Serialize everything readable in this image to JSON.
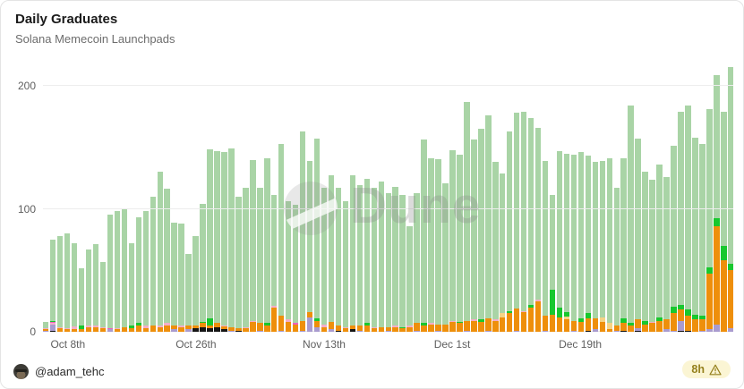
{
  "header": {
    "title": "Daily Graduates",
    "subtitle": "Solana Memecoin Launchpads"
  },
  "watermark": {
    "text": "Dune"
  },
  "footer": {
    "author": "@adam_tehc",
    "badge": {
      "label": "8h",
      "icon": "warning-triangle-icon"
    }
  },
  "chart_data": {
    "type": "bar",
    "stacked": true,
    "title": "Daily Graduates",
    "xlabel": "",
    "ylabel": "",
    "ylim": [
      0,
      215
    ],
    "grid": true,
    "legend": "none",
    "yticks": [
      0,
      100,
      200
    ],
    "xticks": [
      {
        "index": 3,
        "label": "Oct 8th"
      },
      {
        "index": 21,
        "label": "Oct 26th"
      },
      {
        "index": 39,
        "label": "Nov 13th"
      },
      {
        "index": 57,
        "label": "Dec 1st"
      },
      {
        "index": 75,
        "label": "Dec 19th"
      }
    ],
    "colors": {
      "bk": "#151515",
      "pu": "#a99bcf",
      "or": "#ee8f0b",
      "cr": "#f5d385",
      "pk": "#f3aec8",
      "mg": "#ee5fbe",
      "gr": "#18c82e",
      "lg": "#a9d4a6"
    },
    "stack_order": [
      "bk",
      "pu",
      "or",
      "cr",
      "pk",
      "mg",
      "gr",
      "lg"
    ],
    "series_names": {
      "bk": "black",
      "pu": "purple",
      "or": "orange",
      "cr": "cream",
      "pk": "pink",
      "mg": "magenta",
      "gr": "bright-green",
      "lg": "light-green"
    },
    "note": "lg (light-green) segment = total minus sum of listed segments",
    "bars": [
      [
        "Oct 5",
        8,
        {
          "pu": 1,
          "or": 1,
          "pk": 1
        }
      ],
      [
        "Oct 6",
        75,
        {
          "bk": 1,
          "pu": 5,
          "pk": 1,
          "mg": 1,
          "gr": 1
        }
      ],
      [
        "Oct 7",
        78,
        {
          "or": 3,
          "pk": 1
        }
      ],
      [
        "Oct 8",
        80,
        {
          "or": 2,
          "pk": 1
        }
      ],
      [
        "Oct 9",
        72,
        {
          "or": 2,
          "pk": 2
        }
      ],
      [
        "Oct 10",
        52,
        {
          "or": 2,
          "gr": 3
        }
      ],
      [
        "Oct 11",
        67,
        {
          "or": 4,
          "pk": 1
        }
      ],
      [
        "Oct 12",
        71,
        {
          "or": 4,
          "pk": 1
        }
      ],
      [
        "Oct 13",
        57,
        {
          "or": 3,
          "pk": 1
        }
      ],
      [
        "Oct 14",
        95,
        {
          "pu": 2,
          "mg": 1
        }
      ],
      [
        "Oct 15",
        98,
        {
          "or": 2,
          "pk": 1
        }
      ],
      [
        "Oct 16",
        100,
        {
          "or": 4
        }
      ],
      [
        "Oct 17",
        72,
        {
          "or": 3,
          "gr": 2
        }
      ],
      [
        "Oct 18",
        93,
        {
          "or": 5,
          "gr": 2
        }
      ],
      [
        "Oct 19",
        98,
        {
          "or": 3,
          "pk": 2
        }
      ],
      [
        "Oct 20",
        110,
        {
          "or": 5
        }
      ],
      [
        "Oct 21",
        130,
        {
          "or": 4,
          "pk": 1
        }
      ],
      [
        "Oct 22",
        116,
        {
          "or": 5,
          "pk": 2
        }
      ],
      [
        "Oct 23",
        89,
        {
          "pu": 2,
          "or": 3
        }
      ],
      [
        "Oct 24",
        88,
        {
          "or": 4,
          "pk": 1
        }
      ],
      [
        "Oct 25",
        63,
        {
          "or": 3,
          "pu": 2
        }
      ],
      [
        "Oct 26",
        78,
        {
          "bk": 3,
          "or": 2
        }
      ],
      [
        "Oct 27",
        104,
        {
          "bk": 4,
          "or": 3,
          "gr": 1
        }
      ],
      [
        "Oct 28",
        148,
        {
          "bk": 3,
          "or": 2,
          "gr": 6
        }
      ],
      [
        "Oct 29",
        147,
        {
          "bk": 4,
          "or": 3
        }
      ],
      [
        "Oct 30",
        146,
        {
          "bk": 2,
          "or": 2,
          "pk": 1
        }
      ],
      [
        "Oct 31",
        149,
        {
          "pu": 1,
          "or": 3
        }
      ],
      [
        "Nov 1",
        110,
        {
          "bk": 1,
          "or": 2
        }
      ],
      [
        "Nov 2",
        117,
        {
          "or": 3,
          "pk": 1
        }
      ],
      [
        "Nov 3",
        140,
        {
          "or": 8,
          "pk": 1
        }
      ],
      [
        "Nov 4",
        117,
        {
          "pu": 1,
          "or": 6
        }
      ],
      [
        "Nov 5",
        141,
        {
          "or": 5,
          "gr": 2
        }
      ],
      [
        "Nov 6",
        111,
        {
          "or": 20,
          "pk": 1
        }
      ],
      [
        "Nov 7",
        153,
        {
          "pu": 1,
          "or": 12
        }
      ],
      [
        "Nov 8",
        106,
        {
          "or": 8,
          "pk": 2
        }
      ],
      [
        "Nov 9",
        103,
        {
          "or": 6,
          "mg": 1
        }
      ],
      [
        "Nov 10",
        163,
        {
          "pu": 1,
          "or": 8
        }
      ],
      [
        "Nov 11",
        139,
        {
          "pu": 12,
          "or": 4
        }
      ],
      [
        "Nov 12",
        157,
        {
          "pu": 4,
          "or": 5,
          "gr": 2
        }
      ],
      [
        "Nov 13",
        117,
        {
          "or": 4,
          "pk": 2
        }
      ],
      [
        "Nov 14",
        127,
        {
          "pu": 2,
          "or": 6
        }
      ],
      [
        "Nov 15",
        117,
        {
          "bk": 1,
          "or": 4
        }
      ],
      [
        "Nov 16",
        106,
        {
          "or": 3,
          "pk": 1
        }
      ],
      [
        "Nov 17",
        127,
        {
          "bk": 2,
          "or": 3
        }
      ],
      [
        "Nov 18",
        119,
        {
          "pu": 1,
          "or": 4
        }
      ],
      [
        "Nov 19",
        124,
        {
          "or": 5,
          "gr": 2
        }
      ],
      [
        "Nov 20",
        117,
        {
          "or": 3,
          "pk": 1
        }
      ],
      [
        "Nov 21",
        122,
        {
          "or": 4
        }
      ],
      [
        "Nov 22",
        113,
        {
          "pu": 1,
          "or": 3
        }
      ],
      [
        "Nov 23",
        118,
        {
          "or": 4,
          "pk": 1
        }
      ],
      [
        "Nov 24",
        111,
        {
          "or": 3,
          "gr": 1
        }
      ],
      [
        "Nov 25",
        86,
        {
          "or": 4,
          "pk": 1
        }
      ],
      [
        "Nov 26",
        113,
        {
          "pu": 1,
          "or": 6
        }
      ],
      [
        "Nov 27",
        156,
        {
          "or": 5,
          "gr": 2
        }
      ],
      [
        "Nov 28",
        141,
        {
          "or": 6,
          "pk": 1
        }
      ],
      [
        "Nov 29",
        140,
        {
          "pu": 1,
          "or": 5
        }
      ],
      [
        "Nov 30",
        121,
        {
          "or": 6
        }
      ],
      [
        "Dec 1",
        148,
        {
          "or": 8,
          "pk": 1
        }
      ],
      [
        "Dec 2",
        144,
        {
          "or": 7,
          "gr": 1
        }
      ],
      [
        "Dec 3",
        187,
        {
          "pu": 1,
          "or": 8
        }
      ],
      [
        "Dec 4",
        156,
        {
          "or": 9,
          "pk": 1
        }
      ],
      [
        "Dec 5",
        165,
        {
          "or": 8,
          "gr": 2
        }
      ],
      [
        "Dec 6",
        176,
        {
          "pu": 1,
          "or": 10
        }
      ],
      [
        "Dec 7",
        138,
        {
          "or": 9,
          "pk": 1
        }
      ],
      [
        "Dec 8",
        129,
        {
          "or": 12,
          "cr": 3
        }
      ],
      [
        "Dec 9",
        163,
        {
          "or": 15,
          "gr": 2
        }
      ],
      [
        "Dec 10",
        178,
        {
          "pu": 1,
          "or": 18
        }
      ],
      [
        "Dec 11",
        179,
        {
          "or": 16,
          "pk": 1
        }
      ],
      [
        "Dec 12",
        174,
        {
          "or": 20,
          "gr": 2
        }
      ],
      [
        "Dec 13",
        166,
        {
          "or": 25,
          "pk": 1
        }
      ],
      [
        "Dec 14",
        139,
        {
          "pu": 1,
          "or": 12
        }
      ],
      [
        "Dec 15",
        111,
        {
          "or": 14,
          "gr": 20
        }
      ],
      [
        "Dec 16",
        147,
        {
          "or": 12,
          "gr": 8
        }
      ],
      [
        "Dec 17",
        145,
        {
          "or": 10,
          "cr": 2,
          "gr": 4
        }
      ],
      [
        "Dec 18",
        144,
        {
          "pu": 1,
          "or": 8
        }
      ],
      [
        "Dec 19",
        146,
        {
          "or": 8,
          "gr": 3
        }
      ],
      [
        "Dec 20",
        143,
        {
          "bk": 1,
          "or": 10,
          "gr": 4
        }
      ],
      [
        "Dec 21",
        138,
        {
          "pu": 2,
          "or": 9
        }
      ],
      [
        "Dec 22",
        139,
        {
          "or": 8,
          "cr": 4
        }
      ],
      [
        "Dec 23",
        141,
        {
          "or": 2,
          "cr": 5
        }
      ],
      [
        "Dec 24",
        117,
        {
          "pu": 1,
          "or": 4
        }
      ],
      [
        "Dec 25",
        141,
        {
          "bk": 1,
          "or": 6,
          "gr": 4
        }
      ],
      [
        "Dec 26",
        184,
        {
          "or": 5,
          "gr": 2
        }
      ],
      [
        "Dec 27",
        157,
        {
          "bk": 1,
          "pu": 2,
          "or": 7
        }
      ],
      [
        "Dec 28",
        130,
        {
          "or": 6,
          "gr": 3
        }
      ],
      [
        "Dec 29",
        124,
        {
          "or": 7,
          "pk": 1
        }
      ],
      [
        "Dec 30",
        136,
        {
          "or": 9,
          "gr": 3
        }
      ],
      [
        "Dec 31",
        126,
        {
          "pu": 2,
          "or": 8
        }
      ],
      [
        "Jan 1",
        151,
        {
          "pu": 1,
          "or": 14,
          "gr": 5
        }
      ],
      [
        "Jan 2",
        179,
        {
          "bk": 1,
          "pu": 8,
          "or": 9,
          "gr": 4
        }
      ],
      [
        "Jan 3",
        184,
        {
          "bk": 1,
          "or": 12,
          "gr": 5
        }
      ],
      [
        "Jan 4",
        158,
        {
          "or": 10,
          "gr": 4
        }
      ],
      [
        "Jan 5",
        153,
        {
          "pu": 1,
          "or": 9,
          "gr": 3
        }
      ],
      [
        "Jan 6",
        181,
        {
          "pu": 2,
          "or": 45,
          "gr": 5
        }
      ],
      [
        "Jan 7",
        209,
        {
          "pu": 6,
          "or": 80,
          "gr": 6
        }
      ],
      [
        "Jan 8",
        179,
        {
          "or": 58,
          "gr": 12
        }
      ],
      [
        "Jan 9",
        215,
        {
          "pu": 3,
          "or": 47,
          "gr": 5
        }
      ]
    ]
  }
}
